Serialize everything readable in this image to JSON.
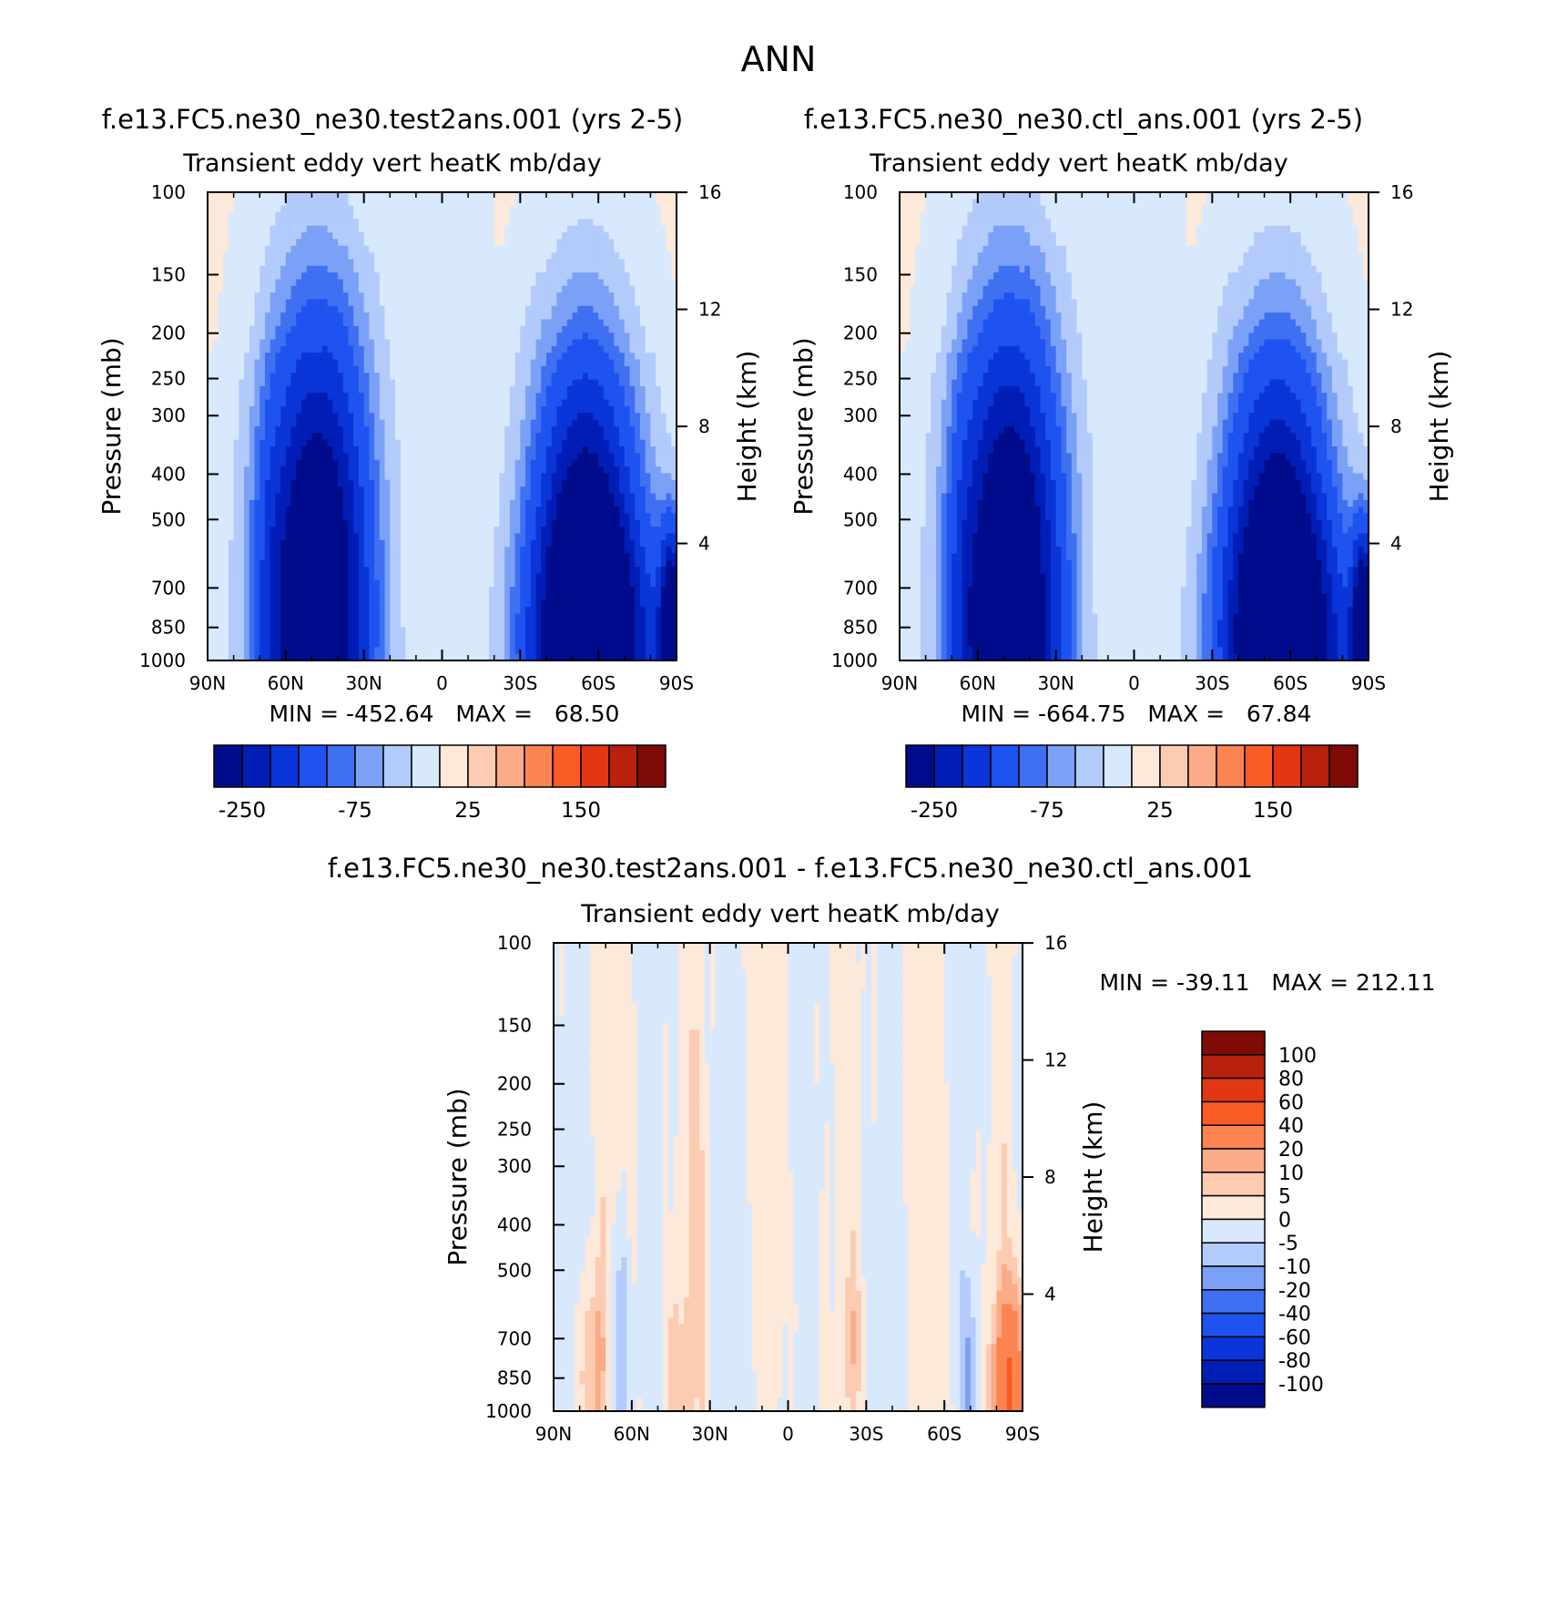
{
  "page_title": "ANN",
  "colors": {
    "blues": [
      "#000c8b",
      "#001eb5",
      "#0a35d8",
      "#1e53f0",
      "#3f70f2",
      "#7ba1f7",
      "#b2cbfb",
      "#d8e8fd"
    ],
    "reds": [
      "#fde9d9",
      "#fccbb1",
      "#fbab87",
      "#fb8451",
      "#fb5c24",
      "#e33613",
      "#b8210d",
      "#7f0b06"
    ],
    "plot_frame": "#000000"
  },
  "chart_data": [
    {
      "type": "heatmap",
      "title": "f.e13.FC5.ne30_ne30.test2ans.001 (yrs 2-5)",
      "subtitle": "Transient eddy vert heatK mb/day",
      "ylabel": "Pressure (mb)",
      "ylabel_right": "Height (km)",
      "x_ticks": [
        "90N",
        "60N",
        "30N",
        "0",
        "30S",
        "60S",
        "90S"
      ],
      "y_ticks": [
        100,
        150,
        200,
        250,
        300,
        400,
        500,
        700,
        850,
        1000
      ],
      "y_scale": "log",
      "y_range": [
        1000,
        100
      ],
      "y_right_ticks": [
        4,
        8,
        12,
        16
      ],
      "stats_text": "MIN = -452.64   MAX =   68.50",
      "min": -452.64,
      "max": 68.5,
      "colorbar": {
        "orientation": "horizontal",
        "tick_labels": [
          "-250",
          "-75",
          "25",
          "150"
        ]
      },
      "features": [
        {
          "lat": 48,
          "p": 800,
          "w": 14,
          "h": 4.2,
          "v": -380
        },
        {
          "lat": 66,
          "p": 850,
          "w": 4,
          "h": 3.5,
          "v": -40
        },
        {
          "lat": -55,
          "p": 750,
          "w": 14,
          "h": 3.6,
          "v": -360
        },
        {
          "lat": -62,
          "p": 950,
          "w": 20,
          "h": 1.8,
          "v": -140
        },
        {
          "lat": 12,
          "p": 600,
          "w": 4,
          "h": 0.9,
          "v": 8
        },
        {
          "lat": -12,
          "p": 600,
          "w": 4,
          "h": 0.9,
          "v": 8
        },
        {
          "lat": -88,
          "p": 900,
          "w": 3,
          "h": 1.5,
          "v": -350
        }
      ]
    },
    {
      "type": "heatmap",
      "title": "f.e13.FC5.ne30_ne30.ctl_ans.001 (yrs 2-5)",
      "subtitle": "Transient eddy vert heatK mb/day",
      "ylabel": "Pressure (mb)",
      "ylabel_right": "Height (km)",
      "x_ticks": [
        "90N",
        "60N",
        "30N",
        "0",
        "30S",
        "60S",
        "90S"
      ],
      "y_ticks": [
        100,
        150,
        200,
        250,
        300,
        400,
        500,
        700,
        850,
        1000
      ],
      "y_scale": "log",
      "y_range": [
        1000,
        100
      ],
      "y_right_ticks": [
        4,
        8,
        12,
        16
      ],
      "stats_text": "MIN = -664.75   MAX =   67.84",
      "min": -664.75,
      "max": 67.84,
      "colorbar": {
        "orientation": "horizontal",
        "tick_labels": [
          "-250",
          "-75",
          "25",
          "150"
        ]
      },
      "features": [
        {
          "lat": 48,
          "p": 800,
          "w": 14,
          "h": 4.2,
          "v": -390
        },
        {
          "lat": 66,
          "p": 850,
          "w": 4,
          "h": 3.5,
          "v": -40
        },
        {
          "lat": -55,
          "p": 750,
          "w": 14,
          "h": 3.6,
          "v": -350
        },
        {
          "lat": -62,
          "p": 950,
          "w": 20,
          "h": 1.8,
          "v": -140
        },
        {
          "lat": 12,
          "p": 600,
          "w": 4,
          "h": 0.9,
          "v": 8
        },
        {
          "lat": -12,
          "p": 600,
          "w": 4,
          "h": 0.9,
          "v": 8
        },
        {
          "lat": -88,
          "p": 900,
          "w": 3,
          "h": 1.5,
          "v": -350
        }
      ]
    },
    {
      "type": "heatmap",
      "title": "f.e13.FC5.ne30_ne30.test2ans.001 - f.e13.FC5.ne30_ne30.ctl_ans.001",
      "subtitle": "Transient eddy vert heatK mb/day",
      "ylabel": "Pressure (mb)",
      "ylabel_right": "Height (km)",
      "x_ticks": [
        "90N",
        "60N",
        "30N",
        "0",
        "30S",
        "60S",
        "90S"
      ],
      "y_ticks": [
        100,
        150,
        200,
        250,
        300,
        400,
        500,
        700,
        850,
        1000
      ],
      "y_scale": "log",
      "y_range": [
        1000,
        100
      ],
      "y_right_ticks": [
        4,
        8,
        12,
        16
      ],
      "stats_text": "MIN = -39.11   MAX = 212.11",
      "min": -39.11,
      "max": 212.11,
      "colorbar": {
        "orientation": "vertical",
        "tick_labels": [
          "100",
          "80",
          "60",
          "40",
          "20",
          "10",
          "5",
          "0",
          "-5",
          "-10",
          "-20",
          "-40",
          "-60",
          "-80",
          "-100"
        ]
      },
      "features": [
        {
          "lat": 74,
          "p": 800,
          "w": 4,
          "h": 1.6,
          "v": 12
        },
        {
          "lat": 65,
          "p": 780,
          "w": 3,
          "h": 1.8,
          "v": -12
        },
        {
          "lat": 42,
          "p": 850,
          "w": 4,
          "h": 1.2,
          "v": 8
        },
        {
          "lat": 35,
          "p": 350,
          "w": 3,
          "h": 2.0,
          "v": 6
        },
        {
          "lat": -85,
          "p": 880,
          "w": 4,
          "h": 1.3,
          "v": 40
        },
        {
          "lat": -70,
          "p": 850,
          "w": 2,
          "h": 1.2,
          "v": -10
        },
        {
          "lat": -25,
          "p": 700,
          "w": 3,
          "h": 1.0,
          "v": 6
        }
      ]
    }
  ]
}
